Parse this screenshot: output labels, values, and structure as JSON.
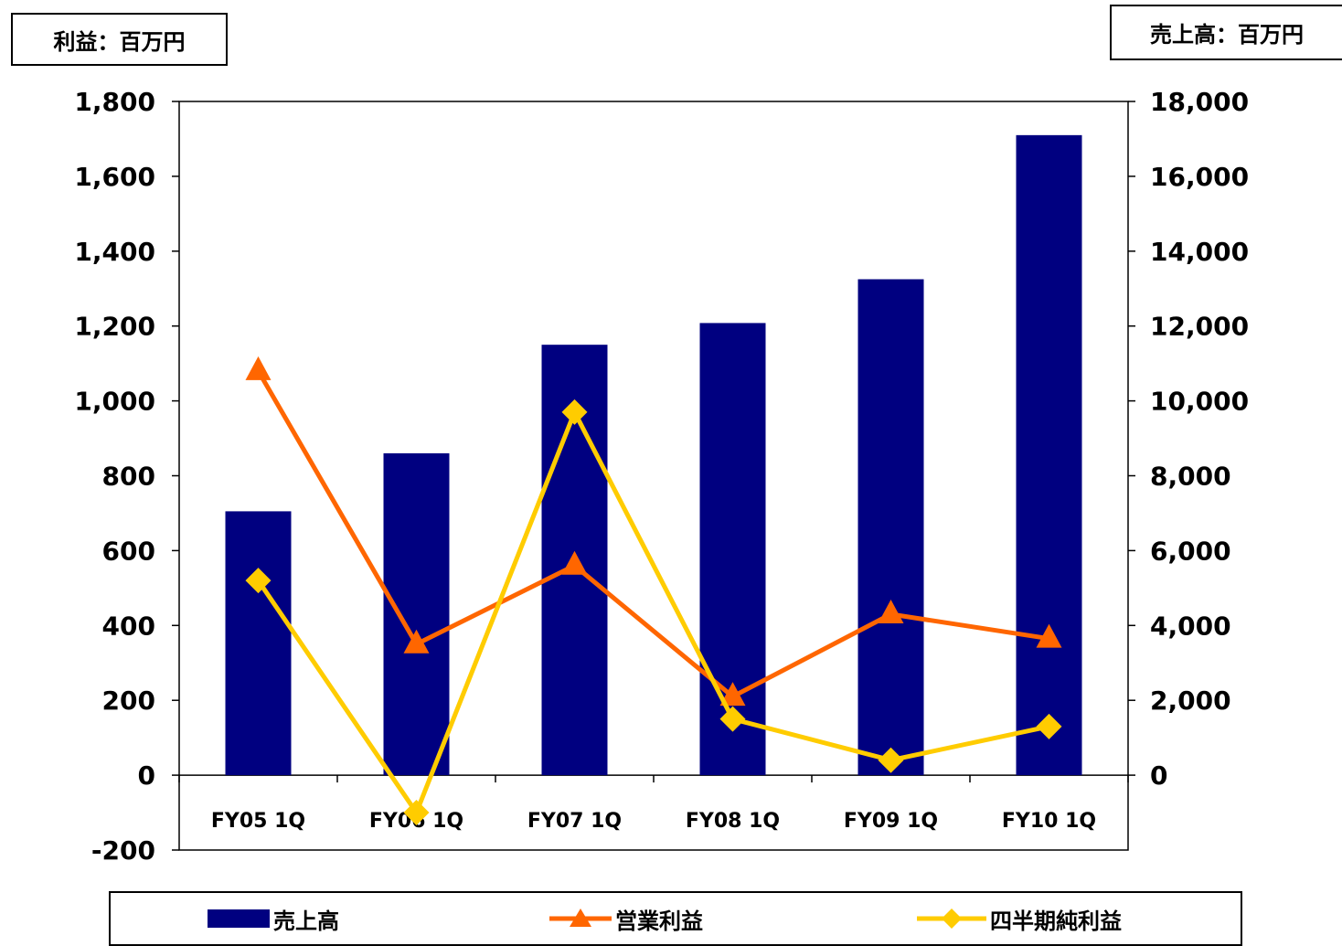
{
  "units": {
    "left": "利益：百万円",
    "right": "売上高：百万円"
  },
  "chart_data": {
    "type": "bar",
    "categories": [
      "FY05 1Q",
      "FY06 1Q",
      "FY07 1Q",
      "FY08 1Q",
      "FY09 1Q",
      "FY10 1Q"
    ],
    "left_axis": {
      "min": -200,
      "max": 1800,
      "ticks": [
        "-200",
        "0",
        "200",
        "400",
        "600",
        "800",
        "1,000",
        "1,200",
        "1,400",
        "1,600",
        "1,800"
      ]
    },
    "right_axis": {
      "min": -2000,
      "max": 18000,
      "ticks": [
        "0",
        "2,000",
        "4,000",
        "6,000",
        "8,000",
        "10,000",
        "12,000",
        "14,000",
        "16,000",
        "18,000"
      ]
    },
    "series": [
      {
        "name": "売上高",
        "type": "bar",
        "axis": "right",
        "color": "#000080",
        "values": [
          7050,
          8600,
          11500,
          12080,
          13250,
          17100
        ]
      },
      {
        "name": "営業利益",
        "type": "line",
        "axis": "left",
        "marker": "triangle",
        "color": "#ff6600",
        "values": [
          1080,
          350,
          560,
          210,
          430,
          365
        ]
      },
      {
        "name": "四半期純利益",
        "type": "line",
        "axis": "left",
        "marker": "diamond",
        "color": "#ffcc00",
        "values": [
          520,
          -100,
          970,
          150,
          40,
          130
        ]
      }
    ],
    "grid": false,
    "legend": "bottom"
  }
}
